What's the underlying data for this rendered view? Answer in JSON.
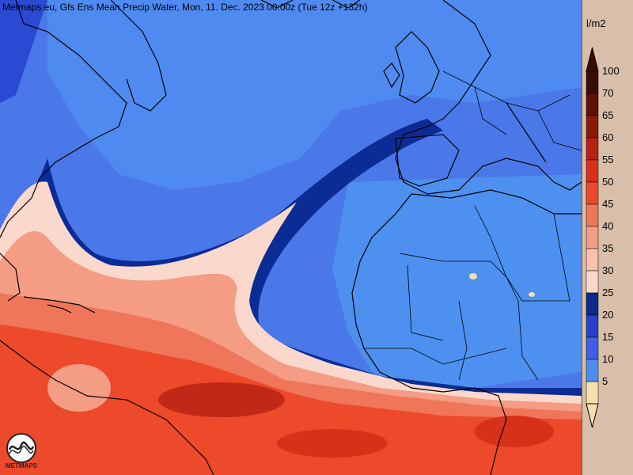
{
  "header": {
    "title": "Metmaps.eu, Gfs Ens Mean Precip Water, Mon, 11. Dec. 2023 00:00z (Tue 12z +132h)"
  },
  "legend": {
    "unit": "l/m2",
    "levels": [
      {
        "label": "100",
        "color": "#3b0a00"
      },
      {
        "label": "70",
        "color": "#5e1000"
      },
      {
        "label": "65",
        "color": "#8a1a05"
      },
      {
        "label": "60",
        "color": "#b62010"
      },
      {
        "label": "55",
        "color": "#d9301a"
      },
      {
        "label": "50",
        "color": "#ec4a2a"
      },
      {
        "label": "45",
        "color": "#f0765a"
      },
      {
        "label": "40",
        "color": "#f49c84"
      },
      {
        "label": "35",
        "color": "#f8c0ad"
      },
      {
        "label": "30",
        "color": "#fbd8cc"
      },
      {
        "label": "25",
        "color": "#0a2a8c"
      },
      {
        "label": "20",
        "color": "#2542cc"
      },
      {
        "label": "15",
        "color": "#3f5ee8"
      },
      {
        "label": "10",
        "color": "#4a8ff0"
      },
      {
        "label": "5",
        "color": "#f3dfb0"
      }
    ]
  },
  "logo": {
    "text": "METMAPS"
  },
  "colors": {
    "ocean_base": "#4f86ee",
    "border_lines": "#000000"
  }
}
